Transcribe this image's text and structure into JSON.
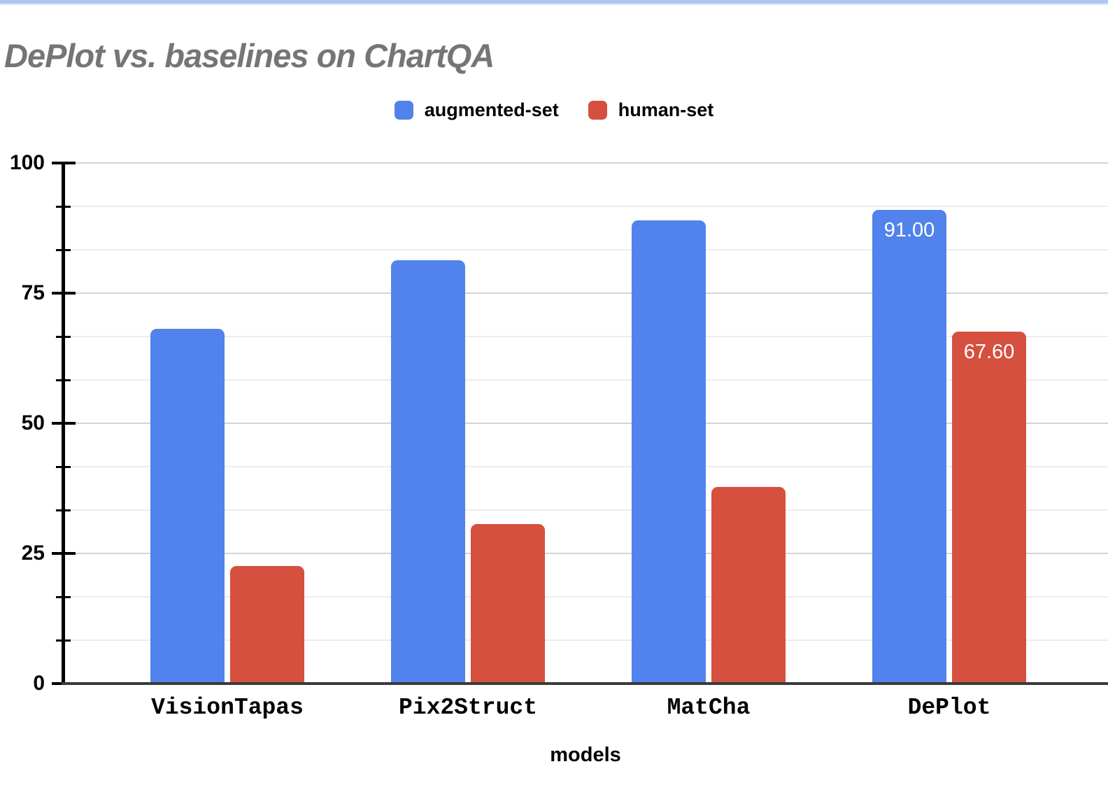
{
  "page": {
    "top_strip_color": "#aec6f2",
    "background_color": "#ffffff"
  },
  "chart_data": {
    "type": "bar",
    "title": "DePlot vs. baselines on ChartQA",
    "title_color": "#757575",
    "xlabel": "models",
    "categories": [
      "VisionTapas",
      "Pix2Struct",
      "MatCha",
      "DePlot"
    ],
    "series": [
      {
        "name": "augmented-set",
        "color": "#5282eb",
        "values": [
          68.1,
          81.3,
          89.0,
          91.0
        ],
        "data_labels": [
          null,
          null,
          null,
          "91.00"
        ]
      },
      {
        "name": "human-set",
        "color": "#d5503f",
        "values": [
          22.6,
          30.7,
          37.8,
          67.6
        ],
        "data_labels": [
          null,
          null,
          null,
          "67.60"
        ]
      }
    ],
    "ylim": [
      0,
      100
    ],
    "yticks": [
      0,
      25,
      50,
      75,
      100
    ],
    "minor_divisions_per_major": 3,
    "grid": true,
    "legend_position": "top",
    "axis_color": "#000000",
    "baseline_color": "#3a3a3a",
    "gridline_major_color": "#d4d4d4",
    "gridline_minor_color": "#ececec",
    "value_label_color": "#ffffff"
  }
}
